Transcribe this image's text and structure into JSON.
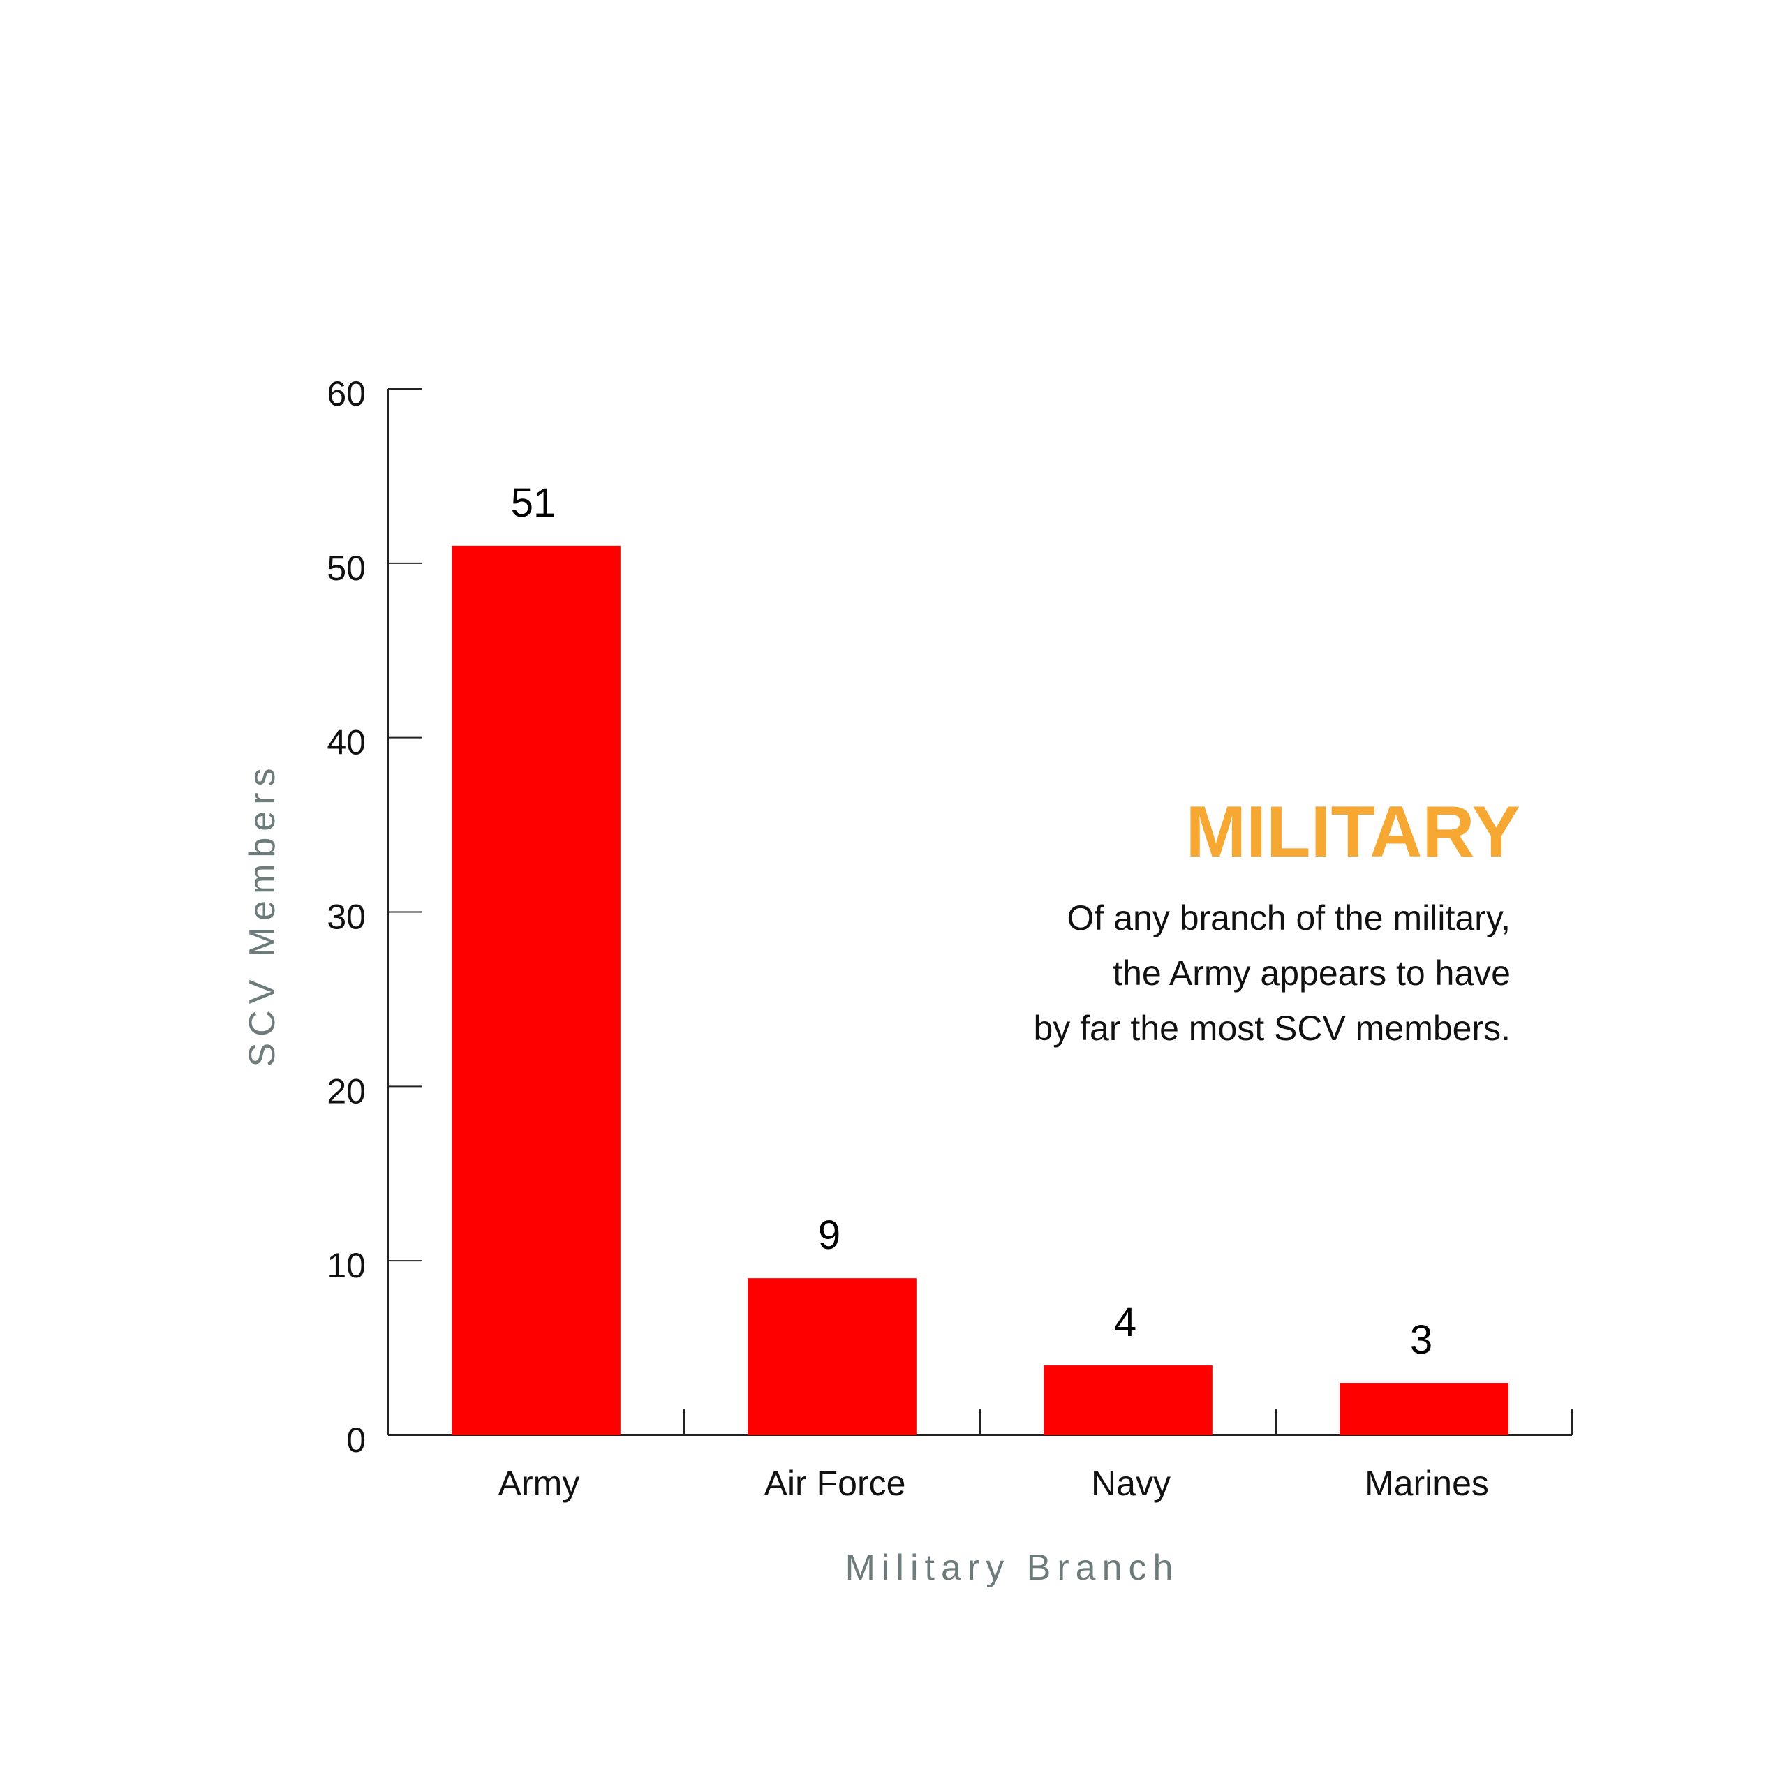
{
  "chart_data": {
    "type": "bar",
    "categories": [
      "Army",
      "Air Force",
      "Navy",
      "Marines"
    ],
    "values": [
      51,
      9,
      4,
      3
    ],
    "data_labels": [
      "51",
      "9",
      "4",
      "3"
    ],
    "title": "",
    "xlabel": "Military Branch",
    "ylabel": "SCV Members",
    "ylim": [
      0,
      60
    ],
    "yticks": [
      0,
      10,
      20,
      30,
      40,
      50,
      60
    ],
    "grid": false,
    "legend": "none",
    "bar_color": "#ff0000",
    "axis_color": "#222222",
    "axis_title_color": "#6e7b7b"
  },
  "callout": {
    "title": "MILITARY",
    "title_color": "#f7a833",
    "lines": [
      "Of any branch of the military,",
      "the Army appears to have",
      "by far the most SCV members."
    ]
  }
}
